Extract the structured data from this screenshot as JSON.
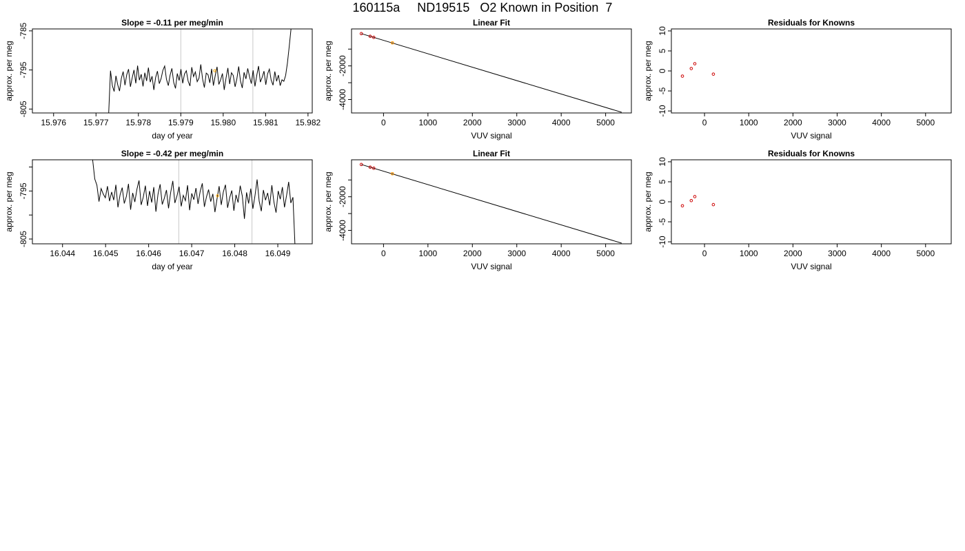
{
  "page": {
    "title": "160115a     ND19515   O2 Known in Position  7"
  },
  "chart_data": [
    {
      "type": "line",
      "title": "Slope =  -0.11  per meg/min",
      "xlabel": "day of year",
      "ylabel": "approx. per meg",
      "xlim": [
        15.9755,
        15.9821
      ],
      "ylim": [
        -806,
        -784.5
      ],
      "x_ticks": [
        15.976,
        15.977,
        15.978,
        15.979,
        15.98,
        15.981,
        15.982
      ],
      "x_tick_labels": [
        "15.976",
        "15.977",
        "15.978",
        "15.979",
        "15.980",
        "15.981",
        "15.982"
      ],
      "y_ticks": [
        -805,
        -795,
        -785
      ],
      "y_tick_labels": [
        "-805",
        "-795",
        "-785"
      ],
      "vlines": [
        15.979,
        15.9807
      ],
      "marker": {
        "x": 15.9798,
        "y": -795.2,
        "color": "#ffa500"
      },
      "series": [
        {
          "x_start": 15.9773,
          "x_end": 15.9816,
          "values": [
            -806.0,
            -795.2,
            -799.0,
            -800.5,
            -796.5,
            -798.8,
            -800.4,
            -797.1,
            -795.4,
            -798.9,
            -796.2,
            -794.8,
            -799.3,
            -797.0,
            -795.0,
            -798.4,
            -793.9,
            -797.6,
            -796.1,
            -799.2,
            -795.7,
            -797.8,
            -794.4,
            -798.1,
            -796.6,
            -800.1,
            -796.9,
            -795.3,
            -798.5,
            -797.2,
            -795.1,
            -794.0,
            -797.4,
            -799.0,
            -796.3,
            -794.6,
            -798.2,
            -799.7,
            -795.9,
            -797.7,
            -794.8,
            -798.4,
            -796.0,
            -795.2,
            -797.9,
            -799.1,
            -794.3,
            -796.7,
            -795.5,
            -798.0,
            -797.1,
            -793.6,
            -797.3,
            -799.5,
            -795.8,
            -796.2,
            -798.3,
            -794.7,
            -799.0,
            -796.5,
            -794.2,
            -798.7,
            -797.5,
            -795.9,
            -800.1,
            -797.0,
            -794.5,
            -798.6,
            -795.7,
            -796.4,
            -799.3,
            -797.2,
            -794.1,
            -797.8,
            -799.6,
            -795.6,
            -797.3,
            -794.6,
            -796.7,
            -798.5,
            -795.1,
            -799.2,
            -796.4,
            -794.0,
            -798.1,
            -796.9,
            -795.3,
            -798.8,
            -796.0,
            -794.8,
            -797.6,
            -798.9,
            -795.4,
            -797.9,
            -796.3,
            -799.0,
            -797.5,
            -797.9,
            -796.4,
            -793.2,
            -789.0,
            -784.5
          ]
        }
      ]
    },
    {
      "type": "scatter",
      "title": "Linear Fit",
      "xlabel": "VUV signal",
      "ylabel": "approx. per meg",
      "xlim": [
        -720,
        5580
      ],
      "ylim": [
        -4800,
        200
      ],
      "x_ticks": [
        0,
        1000,
        2000,
        3000,
        4000,
        5000
      ],
      "x_tick_labels": [
        "0",
        "1000",
        "2000",
        "3000",
        "4000",
        "5000"
      ],
      "y_ticks": [
        -4000,
        -3000,
        -2000,
        -1000
      ],
      "y_tick_labels": [
        "-4000",
        "",
        "-2000",
        ""
      ],
      "fit_line": {
        "x": [
          -500,
          5360
        ],
        "y": [
          -80,
          -4760
        ]
      },
      "points": [
        {
          "x": -500,
          "y": -80,
          "color": "#cc0000"
        },
        {
          "x": -300,
          "y": -240,
          "color": "#cc0000"
        },
        {
          "x": -220,
          "y": -300,
          "color": "#cc0000"
        },
        {
          "x": 200,
          "y": -630,
          "color": "#cc0000"
        },
        {
          "x": 200,
          "y": -630,
          "color": "#ffa500"
        }
      ]
    },
    {
      "type": "scatter",
      "title": "Residuals for Knowns",
      "xlabel": "VUV signal",
      "ylabel": "approx. per meg",
      "xlim": [
        -750,
        5580
      ],
      "ylim": [
        -10.5,
        10.5
      ],
      "x_ticks": [
        0,
        1000,
        2000,
        3000,
        4000,
        5000
      ],
      "x_tick_labels": [
        "0",
        "1000",
        "2000",
        "3000",
        "4000",
        "5000"
      ],
      "y_ticks": [
        -10,
        -5,
        0,
        5,
        10
      ],
      "y_tick_labels": [
        "-10",
        "-5",
        "0",
        "5",
        "10"
      ],
      "points": [
        {
          "x": -500,
          "y": -1.3,
          "color": "#cc0000"
        },
        {
          "x": -300,
          "y": 0.6,
          "color": "#cc0000"
        },
        {
          "x": -220,
          "y": 1.8,
          "color": "#cc0000"
        },
        {
          "x": 200,
          "y": -0.8,
          "color": "#cc0000"
        }
      ]
    },
    {
      "type": "line",
      "title": "Slope =  -0.42  per meg/min",
      "xlabel": "day of year",
      "ylabel": "approx. per meg",
      "xlim": [
        16.0433,
        16.0498
      ],
      "ylim": [
        -806,
        -788.5
      ],
      "x_ticks": [
        16.044,
        16.045,
        16.046,
        16.047,
        16.048,
        16.049
      ],
      "x_tick_labels": [
        "16.044",
        "16.045",
        "16.046",
        "16.047",
        "16.048",
        "16.049"
      ],
      "y_ticks": [
        -805,
        -800,
        -795,
        -790
      ],
      "y_tick_labels": [
        "-805",
        "",
        "-795",
        ""
      ],
      "vlines": [
        16.0467,
        16.0484
      ],
      "marker": {
        "x": 16.0476,
        "y": -796.0,
        "color": "#ffa500"
      },
      "series": [
        {
          "x_start": 16.0447,
          "x_end": 16.0494,
          "values": [
            -788.5,
            -792.5,
            -793.8,
            -797.2,
            -794.5,
            -795.6,
            -796.4,
            -794.0,
            -797.1,
            -795.2,
            -796.9,
            -793.7,
            -798.4,
            -795.8,
            -794.3,
            -797.6,
            -796.1,
            -793.5,
            -798.9,
            -795.4,
            -797.3,
            -794.6,
            -792.8,
            -797.9,
            -796.3,
            -793.9,
            -798.1,
            -795.0,
            -797.4,
            -794.2,
            -799.3,
            -795.7,
            -793.6,
            -797.8,
            -796.5,
            -794.8,
            -798.6,
            -795.3,
            -792.9,
            -797.5,
            -796.0,
            -794.1,
            -798.2,
            -795.9,
            -797.0,
            -793.8,
            -799.0,
            -795.5,
            -796.8,
            -794.4,
            -797.7,
            -795.1,
            -793.4,
            -798.3,
            -796.2,
            -794.7,
            -797.2,
            -795.6,
            -799.4,
            -796.6,
            -794.0,
            -797.9,
            -795.2,
            -793.7,
            -798.5,
            -796.4,
            -794.9,
            -799.1,
            -795.8,
            -797.4,
            -793.9,
            -796.1,
            -800.8,
            -795.3,
            -797.6,
            -794.5,
            -798.7,
            -796.0,
            -792.6,
            -797.1,
            -799.2,
            -794.8,
            -796.9,
            -795.4,
            -798.0,
            -793.8,
            -797.3,
            -799.5,
            -795.0,
            -796.7,
            -794.2,
            -798.4,
            -795.9,
            -793.1,
            -797.5,
            -796.3,
            -806.5
          ]
        }
      ]
    },
    {
      "type": "scatter",
      "title": "Linear Fit",
      "xlabel": "VUV signal",
      "ylabel": "approx. per meg",
      "xlim": [
        -720,
        5580
      ],
      "ylim": [
        -4800,
        200
      ],
      "x_ticks": [
        0,
        1000,
        2000,
        3000,
        4000,
        5000
      ],
      "x_tick_labels": [
        "0",
        "1000",
        "2000",
        "3000",
        "4000",
        "5000"
      ],
      "y_ticks": [
        -4000,
        -3000,
        -2000,
        -1000
      ],
      "y_tick_labels": [
        "-4000",
        "",
        "-2000",
        ""
      ],
      "fit_line": {
        "x": [
          -500,
          5360
        ],
        "y": [
          -80,
          -4760
        ]
      },
      "points": [
        {
          "x": -500,
          "y": -80,
          "color": "#cc0000"
        },
        {
          "x": -300,
          "y": -240,
          "color": "#cc0000"
        },
        {
          "x": -220,
          "y": -300,
          "color": "#cc0000"
        },
        {
          "x": 200,
          "y": -630,
          "color": "#cc0000"
        },
        {
          "x": 200,
          "y": -630,
          "color": "#ffa500"
        }
      ]
    },
    {
      "type": "scatter",
      "title": "Residuals for Knowns",
      "xlabel": "VUV signal",
      "ylabel": "approx. per meg",
      "xlim": [
        -750,
        5580
      ],
      "ylim": [
        -10.5,
        10.5
      ],
      "x_ticks": [
        0,
        1000,
        2000,
        3000,
        4000,
        5000
      ],
      "x_tick_labels": [
        "0",
        "1000",
        "2000",
        "3000",
        "4000",
        "5000"
      ],
      "y_ticks": [
        -10,
        -5,
        0,
        5,
        10
      ],
      "y_tick_labels": [
        "-10",
        "-5",
        "0",
        "5",
        "10"
      ],
      "points": [
        {
          "x": -500,
          "y": -1.0,
          "color": "#cc0000"
        },
        {
          "x": -300,
          "y": 0.3,
          "color": "#cc0000"
        },
        {
          "x": -220,
          "y": 1.3,
          "color": "#cc0000"
        },
        {
          "x": 200,
          "y": -0.7,
          "color": "#cc0000"
        }
      ]
    }
  ]
}
